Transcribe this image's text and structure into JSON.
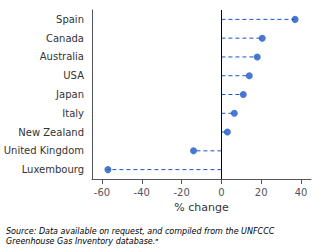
{
  "chart_data": {
    "type": "lollipop",
    "orientation": "horizontal",
    "categories": [
      "Spain",
      "Canada",
      "Australia",
      "USA",
      "Japan",
      "Italy",
      "New Zealand",
      "United Kingdom",
      "Luxembourg"
    ],
    "values": [
      37.0,
      20.5,
      18.0,
      14.0,
      11.0,
      6.5,
      3.0,
      -14.0,
      -57.0
    ],
    "color": "#1a56c4",
    "marker": "circle",
    "line_style": "dashed",
    "xlabel": "% change",
    "xlim": [
      -65,
      45
    ],
    "xticks": [
      -60,
      -40,
      -20,
      0,
      20,
      40
    ],
    "grid": false,
    "annotation": "Source: Data available on request, and compiled from the UNFCCC\nGreenhouse Gas Inventory database.ᵃ"
  }
}
